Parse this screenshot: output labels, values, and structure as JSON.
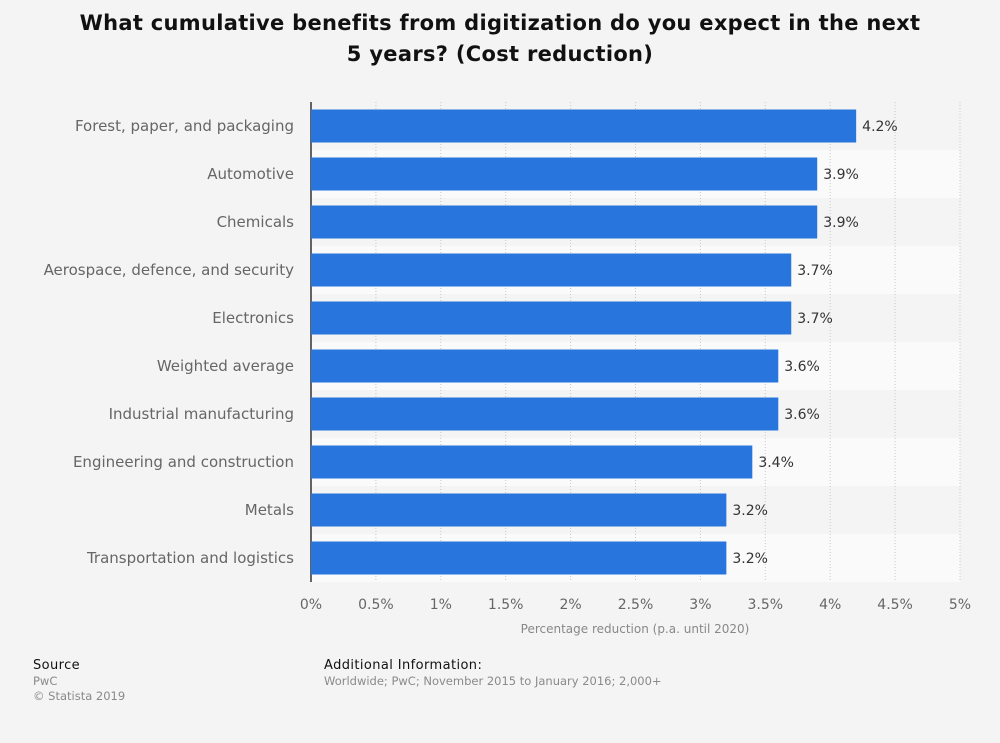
{
  "title_line1": "What cumulative benefits from digitization do you expect in the next",
  "title_line2": "5 years? (Cost reduction)",
  "chart_data": {
    "type": "bar",
    "orientation": "horizontal",
    "categories": [
      "Forest, paper, and packaging",
      "Automotive",
      "Chemicals",
      "Aerospace, defence, and security",
      "Electronics",
      "Weighted average",
      "Industrial manufacturing",
      "Engineering and construction",
      "Metals",
      "Transportation and logistics"
    ],
    "values": [
      4.2,
      3.9,
      3.9,
      3.7,
      3.7,
      3.6,
      3.6,
      3.4,
      3.2,
      3.2
    ],
    "value_labels": [
      "4.2%",
      "3.9%",
      "3.9%",
      "3.7%",
      "3.7%",
      "3.6%",
      "3.6%",
      "3.4%",
      "3.2%",
      "3.2%"
    ],
    "xlim": [
      0,
      5
    ],
    "ticks": [
      0,
      0.5,
      1,
      1.5,
      2,
      2.5,
      3,
      3.5,
      4,
      4.5,
      5
    ],
    "tick_labels": [
      "0%",
      "0.5%",
      "1%",
      "1.5%",
      "2%",
      "2.5%",
      "3%",
      "3.5%",
      "4%",
      "4.5%",
      "5%"
    ],
    "xlabel": "Percentage reduction (p.a. until 2020)",
    "ylabel": "",
    "grid": true,
    "colors": {
      "bar": "#2876dd",
      "band": "#fafafa",
      "grid": "#c8c8c8"
    }
  },
  "footer": {
    "source_heading": "Source",
    "source_lines": [
      "PwC",
      "© Statista 2019"
    ],
    "additional_heading": "Additional Information:",
    "additional_text": "Worldwide; PwC; November 2015 to January 2016; 2,000+"
  }
}
